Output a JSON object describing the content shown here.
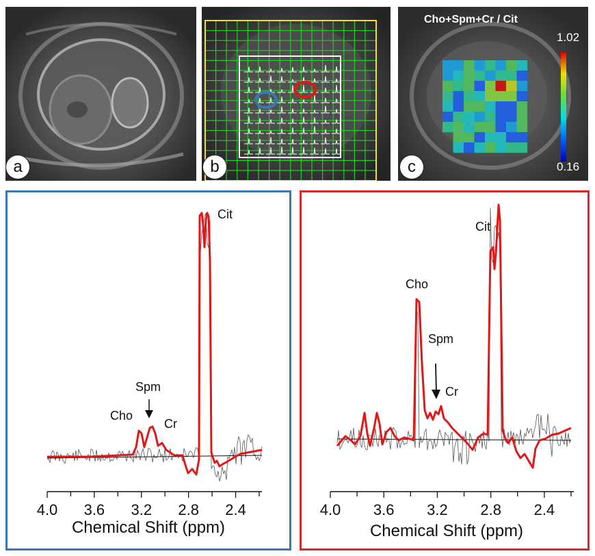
{
  "panels": {
    "a": {
      "label": "a"
    },
    "b": {
      "label": "b"
    },
    "c": {
      "label": "c",
      "title": "Cho+Spm+Cr / Cit",
      "scale_max": "1.02",
      "scale_min": "0.16"
    }
  },
  "colors": {
    "blue_frame": "#3a78b5",
    "red_frame": "#d42a2a",
    "fit_line": "#e01818",
    "raw_line": "#555555",
    "grid_green": "#1fd11f",
    "grid_yellow": "#f0e030"
  },
  "spectra": [
    {
      "id": "blue",
      "peaks": {
        "cit": "Cit",
        "cho": "Cho",
        "spm": "Spm",
        "cr": "Cr"
      },
      "xlabel": "Chemical Shift (ppm)",
      "ticks": [
        "4.0",
        "3.6",
        "3.2",
        "2.8",
        "2.4"
      ]
    },
    {
      "id": "red",
      "peaks": {
        "cit": "Cit",
        "cho": "Cho",
        "spm": "Spm",
        "cr": "Cr"
      },
      "xlabel": "Chemical Shift (ppm)",
      "ticks": [
        "4.0",
        "3.6",
        "3.2",
        "2.8",
        "2.4"
      ]
    }
  ]
}
